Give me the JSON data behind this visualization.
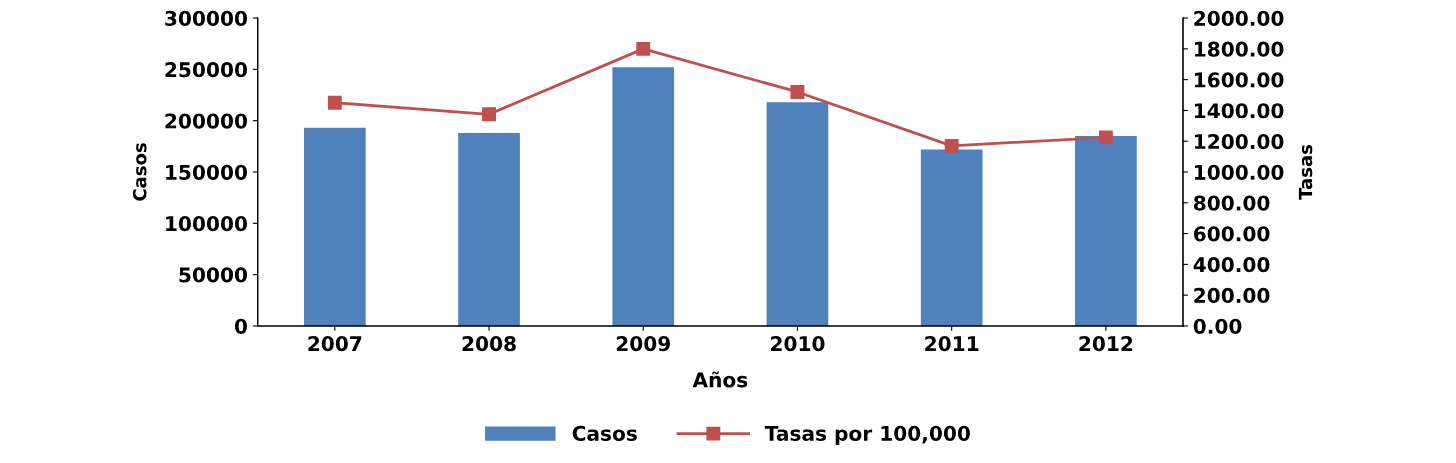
{
  "chart_data": {
    "type": "bar",
    "xlabel": "Años",
    "ylabel": "Casos",
    "y2label": "Tasas",
    "categories": [
      "2007",
      "2008",
      "2009",
      "2010",
      "2011",
      "2012"
    ],
    "series": [
      {
        "name": "Casos",
        "color": "#4f81bd",
        "values": [
          193000,
          188000,
          252000,
          218000,
          172000,
          185000
        ]
      },
      {
        "name": "Tasas por 100,000",
        "type": "line",
        "axis": "y2",
        "color": "#c0504d",
        "marker": "square",
        "values": [
          1450,
          1375,
          1800,
          1520,
          1170,
          1225
        ]
      }
    ],
    "ylim": [
      0,
      300000
    ],
    "yticks": [
      0,
      50000,
      100000,
      150000,
      200000,
      250000,
      300000
    ],
    "y2lim": [
      0,
      2000
    ],
    "y2ticks": [
      {
        "value": 0,
        "label": "0.00"
      },
      {
        "value": 200,
        "label": "200.00"
      },
      {
        "value": 400,
        "label": "400.00"
      },
      {
        "value": 600,
        "label": "600.00"
      },
      {
        "value": 800,
        "label": "800.00"
      },
      {
        "value": 1000,
        "label": "1000.00"
      },
      {
        "value": 1200,
        "label": "1200.00"
      },
      {
        "value": 1400,
        "label": "1400.00"
      },
      {
        "value": 1600,
        "label": "1600.00"
      },
      {
        "value": 1800,
        "label": "1800.00"
      },
      {
        "value": 2000,
        "label": "2000.00"
      }
    ],
    "grid": false,
    "legend": "bottom"
  }
}
